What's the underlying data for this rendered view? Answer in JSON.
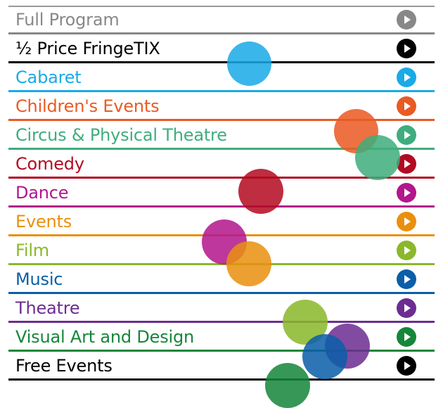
{
  "menu": {
    "items": [
      {
        "label": "Full Program",
        "color": "#888888",
        "icon": "play-icon"
      },
      {
        "label": "½ Price FringeTIX",
        "color": "#000000",
        "icon": "play-icon"
      },
      {
        "label": "Cabaret",
        "color": "#1aaae6",
        "icon": "play-icon"
      },
      {
        "label": "Children's Events",
        "color": "#ea5a23",
        "icon": "play-icon"
      },
      {
        "label": "Circus & Physical Theatre",
        "color": "#3fad7d",
        "icon": "play-icon"
      },
      {
        "label": "Comedy",
        "color": "#b30b21",
        "icon": "play-icon"
      },
      {
        "label": "Dance",
        "color": "#b3168d",
        "icon": "play-icon"
      },
      {
        "label": "Events",
        "color": "#e9900f",
        "icon": "play-icon"
      },
      {
        "label": "Film",
        "color": "#8ab82a",
        "icon": "play-icon"
      },
      {
        "label": "Music",
        "color": "#0b5ea8",
        "icon": "play-icon"
      },
      {
        "label": "Theatre",
        "color": "#6c2d91",
        "icon": "play-icon"
      },
      {
        "label": "Visual Art and Design",
        "color": "#16863a",
        "icon": "play-icon"
      },
      {
        "label": "Free Events",
        "color": "#000000",
        "icon": "play-icon"
      }
    ]
  },
  "decoration": {
    "bubbles": [
      {
        "name": "bubble-cabaret",
        "color": "#1aaae6"
      },
      {
        "name": "bubble-childrens-events",
        "color": "#ea5a23"
      },
      {
        "name": "bubble-circus",
        "color": "#3fad7d"
      },
      {
        "name": "bubble-comedy",
        "color": "#b30b21"
      },
      {
        "name": "bubble-dance",
        "color": "#b3168d"
      },
      {
        "name": "bubble-events",
        "color": "#e9900f"
      },
      {
        "name": "bubble-film",
        "color": "#8ab82a"
      },
      {
        "name": "bubble-theatre",
        "color": "#6c2d91"
      },
      {
        "name": "bubble-music",
        "color": "#0b5ea8"
      },
      {
        "name": "bubble-visual-art",
        "color": "#16863a"
      }
    ]
  }
}
